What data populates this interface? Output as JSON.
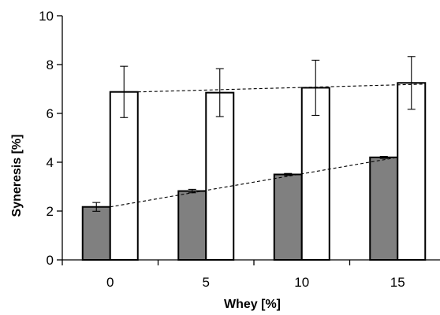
{
  "chart_data": {
    "type": "bar",
    "xlabel": "Whey [%]",
    "ylabel": "Syneresis [%]",
    "categories": [
      "0",
      "5",
      "10",
      "15"
    ],
    "ylim": [
      0,
      10
    ],
    "yticks": [
      "0",
      "2",
      "4",
      "6",
      "8",
      "10"
    ],
    "grid": false,
    "legend": "none",
    "series": [
      {
        "values": [
          2.17,
          2.82,
          3.5,
          4.2
        ],
        "errors": [
          0.18,
          0.07,
          0.04,
          0.04
        ],
        "fill": "#808080"
      },
      {
        "values": [
          6.88,
          6.85,
          7.05,
          7.25
        ],
        "errors": [
          1.05,
          0.98,
          1.13,
          1.08
        ],
        "fill": "#ffffff"
      }
    ],
    "trend_lines": [
      {
        "series_index": 0,
        "from": 2.17,
        "to": 4.2,
        "style": "dashed"
      },
      {
        "series_index": 1,
        "from": 6.88,
        "to": 7.2,
        "style": "dashed"
      }
    ]
  }
}
